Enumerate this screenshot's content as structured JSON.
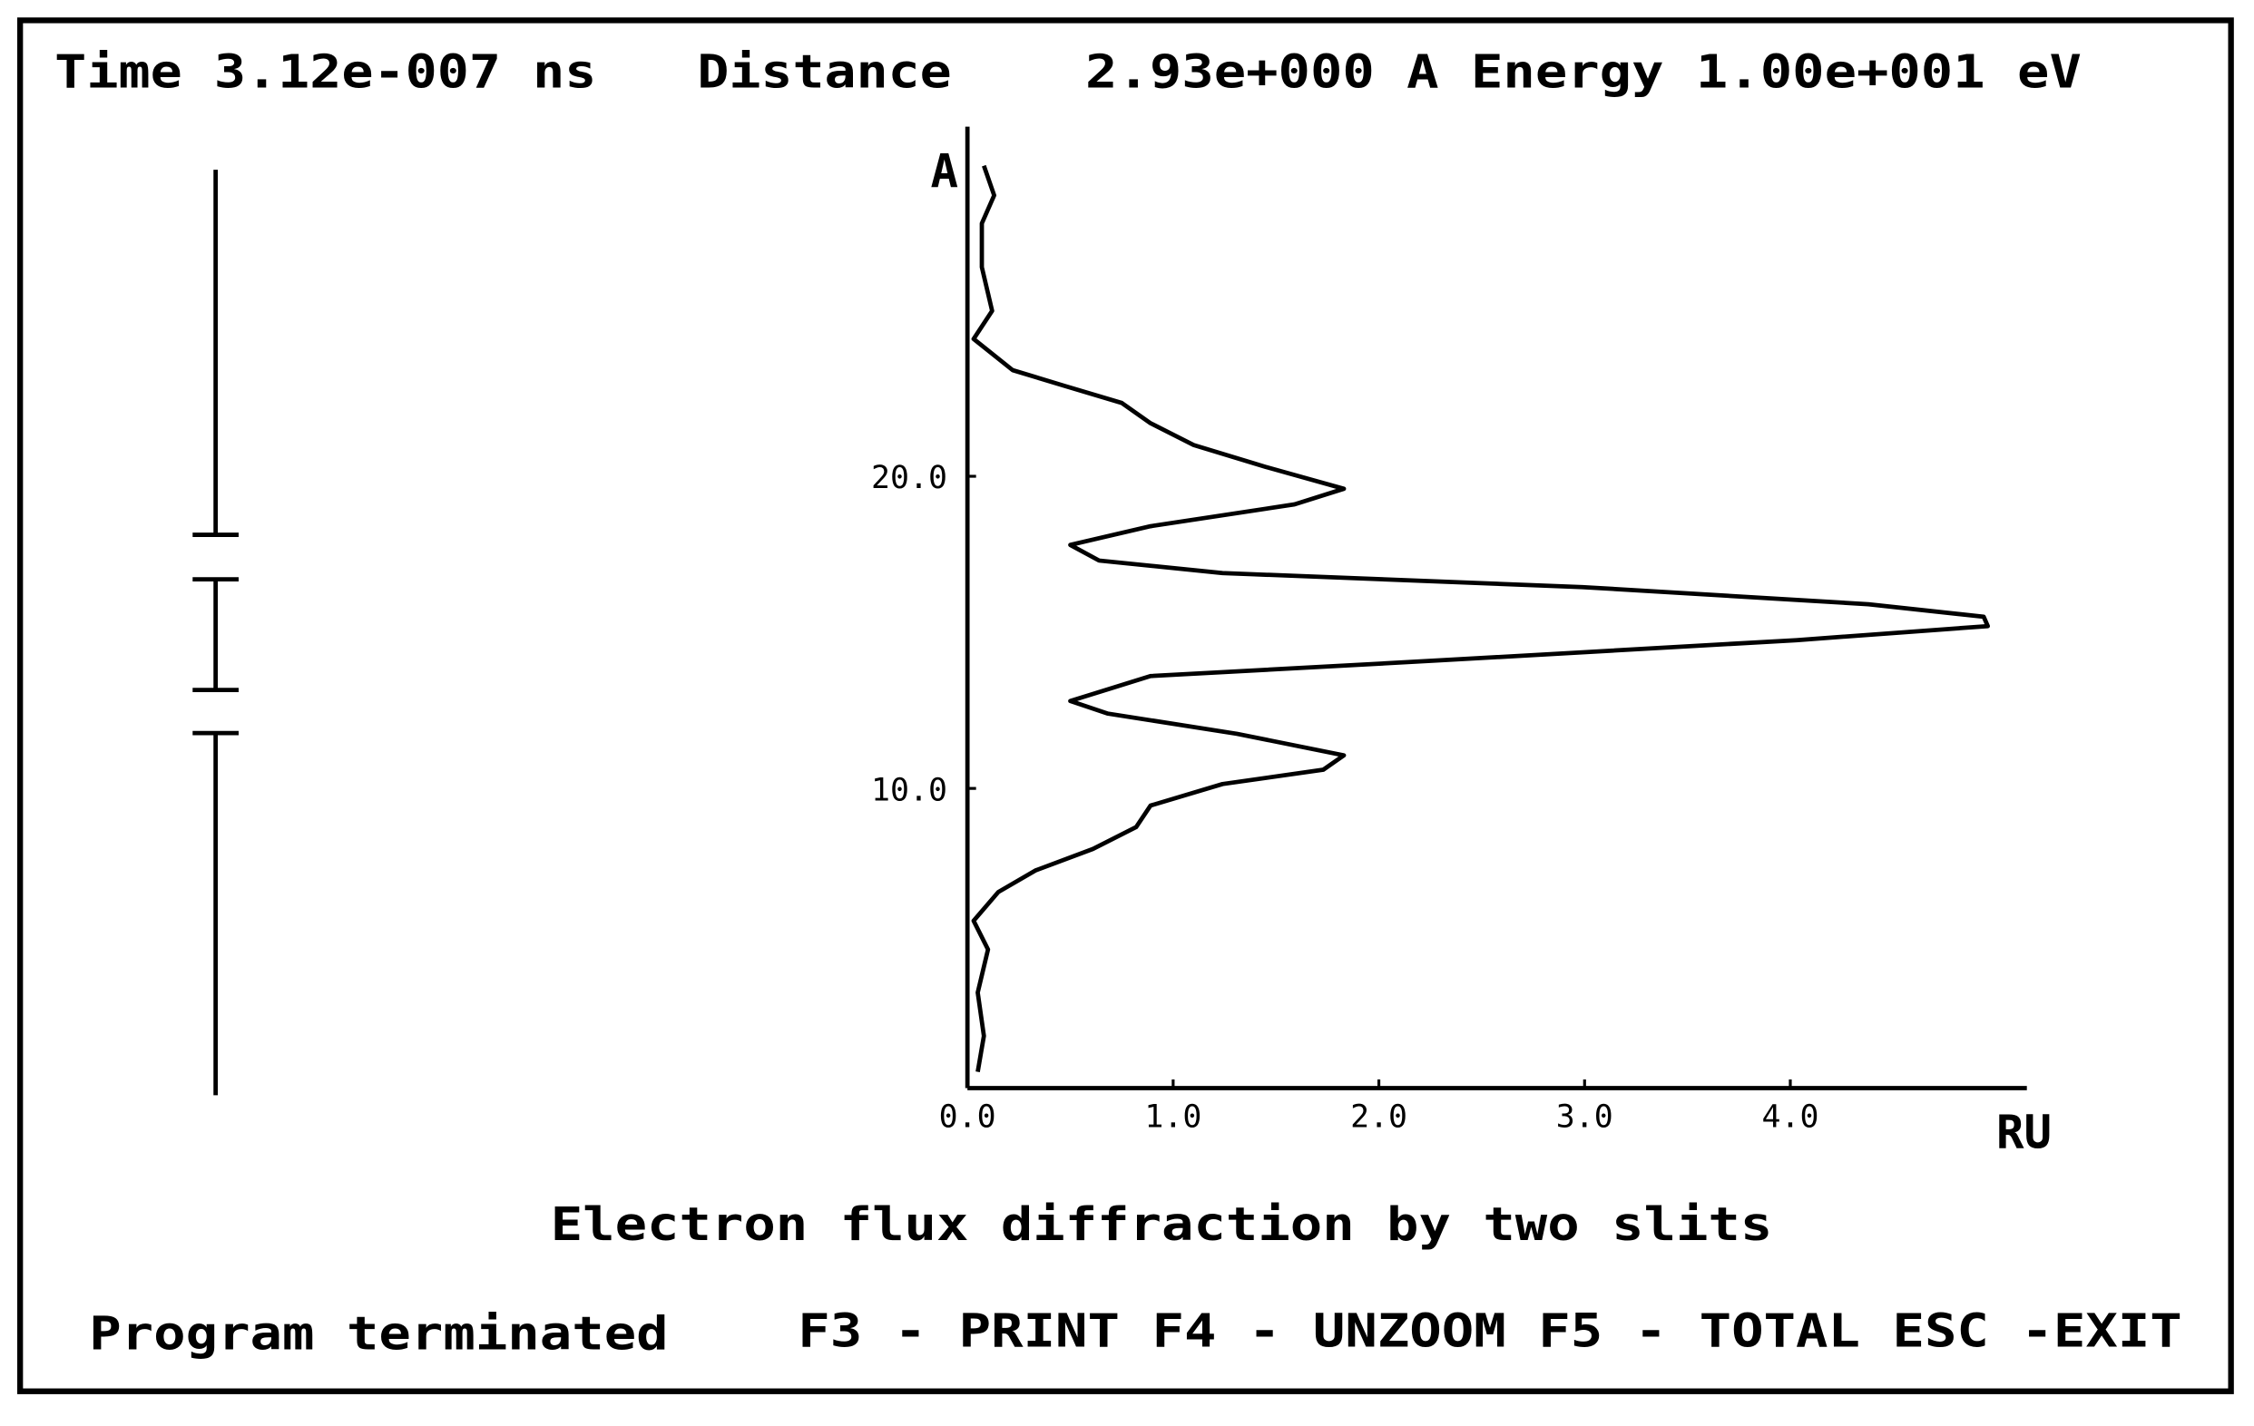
{
  "header": {
    "time": "Time 3.12e-007 ns",
    "distance": "Distance",
    "energy": "2.93e+000 A Energy 1.00e+001 eV"
  },
  "chart_data": {
    "type": "line",
    "title": "Electron flux diffraction by two slits",
    "x_label": "RU",
    "y_label": "A",
    "orientation": "vertical",
    "color": "#000000",
    "x": [
      29.95,
      29.0,
      28.1,
      26.7,
      25.3,
      24.4,
      23.4,
      22.9,
      22.35,
      21.7,
      21.0,
      20.3,
      19.6,
      19.1,
      18.4,
      17.8,
      17.3,
      16.9,
      16.45,
      15.9,
      15.5,
      15.2,
      14.75,
      14.1,
      13.6,
      12.8,
      12.4,
      11.75,
      11.06,
      10.6,
      10.14,
      9.45,
      8.76,
      8.06,
      7.37,
      6.68,
      5.76,
      4.84,
      3.46,
      2.07,
      0.92
    ],
    "series": [
      {
        "values": [
          0.08,
          0.13,
          0.07,
          0.07,
          0.12,
          0.03,
          0.22,
          0.47,
          0.75,
          0.89,
          1.1,
          1.45,
          1.83,
          1.59,
          0.89,
          0.5,
          0.64,
          1.24,
          2.99,
          4.38,
          4.94,
          4.96,
          4.03,
          2.29,
          0.89,
          0.5,
          0.68,
          1.31,
          1.83,
          1.73,
          1.24,
          0.89,
          0.82,
          0.61,
          0.33,
          0.15,
          0.03,
          0.1,
          0.05,
          0.08,
          0.05
        ]
      }
    ],
    "xlim": [
      0,
      5.15
    ],
    "xticks": [
      {
        "value": 0,
        "label": "0.0"
      },
      {
        "value": 1,
        "label": "1.0"
      },
      {
        "value": 2,
        "label": "2.0"
      },
      {
        "value": 3,
        "label": "3.0"
      },
      {
        "value": 4,
        "label": "4.0"
      }
    ],
    "ylim": [
      0.4,
      31.2
    ],
    "yticks": [
      {
        "value": 10,
        "label": "10.0"
      },
      {
        "value": 20,
        "label": "20.0"
      }
    ],
    "grid": false
  },
  "footer": {
    "status": "Program terminated",
    "keys": "F3 - PRINT F4 - UNZOOM F5 - TOTAL ESC -EXIT"
  }
}
